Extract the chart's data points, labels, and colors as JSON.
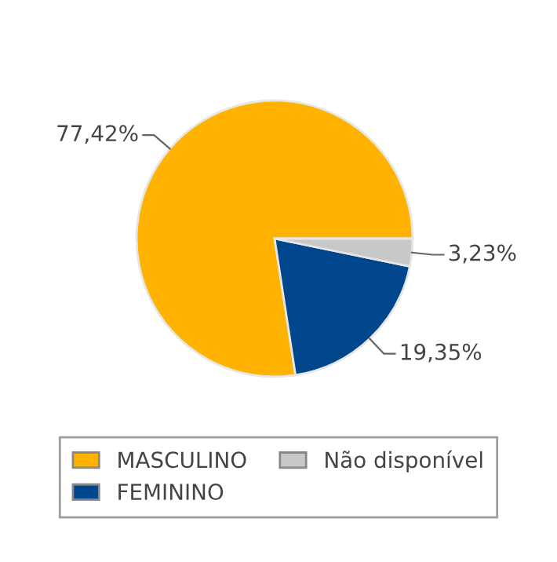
{
  "chart_data": {
    "type": "pie",
    "categories": [
      "MASCULINO",
      "FEMININO",
      "Não disponível"
    ],
    "values": [
      77.42,
      19.35,
      3.23
    ],
    "value_labels": [
      "77,42%",
      "19,35%",
      "3,23%"
    ],
    "colors": [
      "#ffb300",
      "#00468c",
      "#c8c8c8"
    ],
    "legend": "bottom"
  }
}
